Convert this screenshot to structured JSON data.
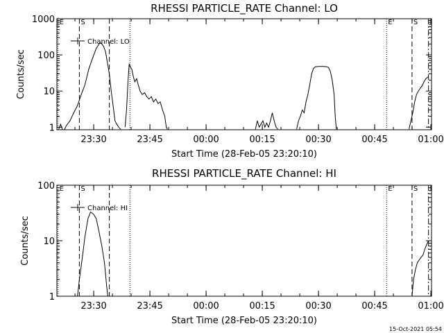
{
  "timestamp": "15-Oct-2021 05:54",
  "colors": {
    "background": "#ffffff",
    "foreground": "#000000"
  },
  "chart_data": [
    {
      "type": "line",
      "title": "RHESSI PARTICLE_RATE Channel: LO",
      "xlabel": "Start Time (28-Feb-05 23:20:10)",
      "ylabel": "Counts/sec",
      "yscale": "log",
      "x_unit": "minutes since 23:20:10",
      "xlim": [
        0,
        100
      ],
      "ylim": [
        0.85,
        1000
      ],
      "x_ticks": [
        {
          "x": 9.83,
          "label": "23:30"
        },
        {
          "x": 24.83,
          "label": "23:45"
        },
        {
          "x": 39.83,
          "label": "00:00"
        },
        {
          "x": 54.83,
          "label": "00:15"
        },
        {
          "x": 69.83,
          "label": "00:30"
        },
        {
          "x": 84.83,
          "label": "00:45"
        },
        {
          "x": 99.83,
          "label": "01:00"
        }
      ],
      "y_ticks": [
        {
          "y": 1,
          "label": "1"
        },
        {
          "y": 10,
          "label": "10"
        },
        {
          "y": 100,
          "label": "100"
        },
        {
          "y": 1000,
          "label": "1000"
        }
      ],
      "legend": {
        "label": "Channel: LO",
        "position": "top-left"
      },
      "markers": [
        {
          "x": 0.3,
          "label": "E",
          "style": "dotted"
        },
        {
          "x": 6.0,
          "label": "S",
          "style": "dashed"
        },
        {
          "x": 14.0,
          "label": "",
          "style": "dashed"
        },
        {
          "x": 19.5,
          "label": "",
          "style": "dotted"
        },
        {
          "x": 88.0,
          "label": "E",
          "style": "dotted"
        },
        {
          "x": 94.8,
          "label": "S",
          "style": "dashed"
        },
        {
          "x": 99.2,
          "label": "",
          "style": "dashdot"
        }
      ],
      "series": [
        {
          "segments": [
            [
              [
                0.5,
                0.88
              ],
              [
                1.0,
                1.2
              ],
              [
                1.5,
                0.85
              ]
            ],
            [
              [
                2.0,
                0.85
              ],
              [
                2.5,
                1.1
              ],
              [
                3.5,
                1.5
              ],
              [
                4.5,
                2.5
              ],
              [
                5.5,
                4
              ],
              [
                6.5,
                8
              ],
              [
                7.5,
                15
              ],
              [
                8.5,
                40
              ],
              [
                9.5,
                80
              ],
              [
                10.5,
                150
              ],
              [
                11.5,
                220
              ],
              [
                12.0,
                200
              ],
              [
                12.5,
                170
              ],
              [
                13.0,
                120
              ],
              [
                13.5,
                60
              ],
              [
                14.0,
                30
              ],
              [
                14.5,
                10
              ],
              [
                15.0,
                4
              ],
              [
                15.5,
                1.5
              ],
              [
                16.0,
                1.2
              ],
              [
                16.5,
                1.0
              ],
              [
                17.0,
                0.88
              ]
            ],
            [
              [
                18.2,
                1.0
              ],
              [
                18.6,
                3
              ],
              [
                19.0,
                20
              ],
              [
                19.3,
                55
              ],
              [
                19.7,
                45
              ],
              [
                20.0,
                40
              ],
              [
                20.4,
                25
              ],
              [
                20.8,
                18
              ],
              [
                21.3,
                22
              ],
              [
                21.7,
                15
              ],
              [
                22.2,
                10
              ],
              [
                22.8,
                8
              ],
              [
                23.4,
                9
              ],
              [
                24.0,
                7
              ],
              [
                24.6,
                6
              ],
              [
                25.2,
                7
              ],
              [
                25.8,
                5
              ],
              [
                26.4,
                6
              ],
              [
                27.0,
                4.5
              ],
              [
                27.6,
                5
              ],
              [
                28.2,
                3
              ],
              [
                28.8,
                2
              ],
              [
                29.2,
                1.0
              ],
              [
                29.5,
                0.88
              ]
            ],
            [
              [
                53.0,
                0.88
              ],
              [
                53.5,
                1.5
              ],
              [
                54.0,
                1.0
              ],
              [
                55.0,
                1.5
              ],
              [
                55.5,
                1.0
              ],
              [
                56.0,
                1.3
              ],
              [
                56.5,
                1.0
              ],
              [
                57.0,
                1.5
              ],
              [
                57.5,
                2.5
              ],
              [
                58.0,
                1.5
              ],
              [
                58.5,
                1.0
              ],
              [
                59.0,
                0.88
              ]
            ],
            [
              [
                64.0,
                0.88
              ],
              [
                64.5,
                1.5
              ],
              [
                65.0,
                2.0
              ],
              [
                65.5,
                3.0
              ],
              [
                66.0,
                2.5
              ],
              [
                66.5,
                5
              ],
              [
                67.0,
                8
              ],
              [
                67.5,
                15
              ],
              [
                68.0,
                30
              ],
              [
                68.5,
                42
              ],
              [
                69.0,
                47
              ],
              [
                70.0,
                48
              ],
              [
                71.0,
                48
              ],
              [
                72.0,
                47
              ],
              [
                72.5,
                45
              ],
              [
                73.0,
                35
              ],
              [
                73.5,
                20
              ],
              [
                74.0,
                8
              ],
              [
                74.3,
                2
              ],
              [
                74.6,
                0.88
              ]
            ],
            [
              [
                94.0,
                0.88
              ],
              [
                94.5,
                1.5
              ],
              [
                95.0,
                2.5
              ],
              [
                95.5,
                5
              ],
              [
                96.0,
                8
              ],
              [
                96.5,
                10
              ],
              [
                97.0,
                12
              ],
              [
                97.5,
                14
              ],
              [
                98.0,
                18
              ],
              [
                98.5,
                22
              ],
              [
                99.2,
                25
              ]
            ]
          ]
        }
      ]
    },
    {
      "type": "line",
      "title": "RHESSI PARTICLE_RATE Channel: HI",
      "xlabel": "Start Time (28-Feb-05 23:20:10)",
      "ylabel": "Counts/sec",
      "yscale": "log",
      "x_unit": "minutes since 23:20:10",
      "xlim": [
        0,
        100
      ],
      "ylim": [
        1,
        100
      ],
      "x_ticks": [
        {
          "x": 9.83,
          "label": "23:30"
        },
        {
          "x": 24.83,
          "label": "23:45"
        },
        {
          "x": 39.83,
          "label": "00:00"
        },
        {
          "x": 54.83,
          "label": "00:15"
        },
        {
          "x": 69.83,
          "label": "00:30"
        },
        {
          "x": 84.83,
          "label": "00:45"
        },
        {
          "x": 99.83,
          "label": "01:00"
        }
      ],
      "y_ticks": [
        {
          "y": 1,
          "label": "1"
        },
        {
          "y": 10,
          "label": "10"
        },
        {
          "y": 100,
          "label": "100"
        }
      ],
      "legend": {
        "label": "Channel: HI",
        "position": "top-left"
      },
      "markers": [
        {
          "x": 0.3,
          "label": "E",
          "style": "dotted"
        },
        {
          "x": 6.0,
          "label": "S",
          "style": "dashed"
        },
        {
          "x": 14.0,
          "label": "",
          "style": "dashed"
        },
        {
          "x": 19.5,
          "label": "",
          "style": "dotted"
        },
        {
          "x": 88.0,
          "label": "E",
          "style": "dotted"
        },
        {
          "x": 94.8,
          "label": "S",
          "style": "dashed"
        },
        {
          "x": 99.2,
          "label": "",
          "style": "dashdot"
        }
      ],
      "series": [
        {
          "segments": [
            [
              [
                4.5,
                1.0
              ],
              [
                5.5,
                1.0
              ],
              [
                6.0,
                2
              ],
              [
                6.8,
                5
              ],
              [
                7.5,
                12
              ],
              [
                8.3,
                25
              ],
              [
                9.0,
                33
              ],
              [
                9.8,
                30
              ],
              [
                10.5,
                25
              ],
              [
                11.2,
                15
              ],
              [
                12.0,
                8
              ],
              [
                12.7,
                4
              ],
              [
                13.3,
                1.5
              ],
              [
                13.6,
                1.0
              ]
            ],
            [
              [
                94.8,
                1.0
              ],
              [
                95.2,
                2
              ],
              [
                95.7,
                3
              ],
              [
                96.2,
                4
              ],
              [
                96.7,
                4.5
              ],
              [
                97.2,
                5
              ],
              [
                97.7,
                5.5
              ],
              [
                98.2,
                7
              ],
              [
                98.7,
                8.5
              ],
              [
                99.2,
                10
              ]
            ]
          ]
        }
      ]
    }
  ]
}
